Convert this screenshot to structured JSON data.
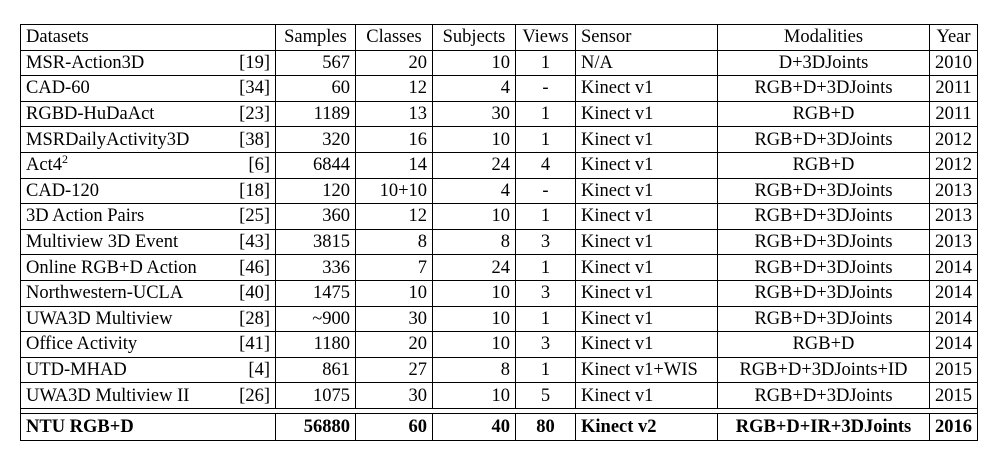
{
  "table": {
    "headers": [
      "Datasets",
      "Samples",
      "Classes",
      "Subjects",
      "Views",
      "Sensor",
      "Modalities",
      "Year"
    ],
    "rows": [
      {
        "name": "MSR-Action3D",
        "sup": "",
        "ref": "[19]",
        "samples": "567",
        "classes": "20",
        "subjects": "10",
        "views": "1",
        "sensor": "N/A",
        "modalities": "D+3DJoints",
        "year": "2010"
      },
      {
        "name": "CAD-60",
        "sup": "",
        "ref": "[34]",
        "samples": "60",
        "classes": "12",
        "subjects": "4",
        "views": "-",
        "sensor": "Kinect v1",
        "modalities": "RGB+D+3DJoints",
        "year": "2011"
      },
      {
        "name": "RGBD-HuDaAct",
        "sup": "",
        "ref": "[23]",
        "samples": "1189",
        "classes": "13",
        "subjects": "30",
        "views": "1",
        "sensor": "Kinect v1",
        "modalities": "RGB+D",
        "year": "2011"
      },
      {
        "name": "MSRDailyActivity3D",
        "sup": "",
        "ref": "[38]",
        "samples": "320",
        "classes": "16",
        "subjects": "10",
        "views": "1",
        "sensor": "Kinect v1",
        "modalities": "RGB+D+3DJoints",
        "year": "2012"
      },
      {
        "name": "Act4",
        "sup": "2",
        "ref": "[6]",
        "samples": "6844",
        "classes": "14",
        "subjects": "24",
        "views": "4",
        "sensor": "Kinect v1",
        "modalities": "RGB+D",
        "year": "2012"
      },
      {
        "name": "CAD-120",
        "sup": "",
        "ref": "[18]",
        "samples": "120",
        "classes": "10+10",
        "subjects": "4",
        "views": "-",
        "sensor": "Kinect v1",
        "modalities": "RGB+D+3DJoints",
        "year": "2013"
      },
      {
        "name": "3D Action Pairs",
        "sup": "",
        "ref": "[25]",
        "samples": "360",
        "classes": "12",
        "subjects": "10",
        "views": "1",
        "sensor": "Kinect v1",
        "modalities": "RGB+D+3DJoints",
        "year": "2013"
      },
      {
        "name": "Multiview 3D Event",
        "sup": "",
        "ref": "[43]",
        "samples": "3815",
        "classes": "8",
        "subjects": "8",
        "views": "3",
        "sensor": "Kinect v1",
        "modalities": "RGB+D+3DJoints",
        "year": "2013"
      },
      {
        "name": "Online RGB+D Action",
        "sup": "",
        "ref": "[46]",
        "samples": "336",
        "classes": "7",
        "subjects": "24",
        "views": "1",
        "sensor": "Kinect v1",
        "modalities": "RGB+D+3DJoints",
        "year": "2014"
      },
      {
        "name": "Northwestern-UCLA",
        "sup": "",
        "ref": "[40]",
        "samples": "1475",
        "classes": "10",
        "subjects": "10",
        "views": "3",
        "sensor": "Kinect v1",
        "modalities": "RGB+D+3DJoints",
        "year": "2014"
      },
      {
        "name": "UWA3D Multiview",
        "sup": "",
        "ref": "[28]",
        "samples": "~900",
        "classes": "30",
        "subjects": "10",
        "views": "1",
        "sensor": "Kinect v1",
        "modalities": "RGB+D+3DJoints",
        "year": "2014"
      },
      {
        "name": "Office Activity",
        "sup": "",
        "ref": "[41]",
        "samples": "1180",
        "classes": "20",
        "subjects": "10",
        "views": "3",
        "sensor": "Kinect v1",
        "modalities": "RGB+D",
        "year": "2014"
      },
      {
        "name": "UTD-MHAD",
        "sup": "",
        "ref": "[4]",
        "samples": "861",
        "classes": "27",
        "subjects": "8",
        "views": "1",
        "sensor": "Kinect v1+WIS",
        "modalities": "RGB+D+3DJoints+ID",
        "year": "2015"
      },
      {
        "name": "UWA3D Multiview II",
        "sup": "",
        "ref": "[26]",
        "samples": "1075",
        "classes": "30",
        "subjects": "10",
        "views": "5",
        "sensor": "Kinect v1",
        "modalities": "RGB+D+3DJoints",
        "year": "2015"
      }
    ],
    "highlight": {
      "name": "NTU RGB+D",
      "samples": "56880",
      "classes": "60",
      "subjects": "40",
      "views": "80",
      "sensor": "Kinect v2",
      "modalities": "RGB+D+IR+3DJoints",
      "year": "2016"
    }
  }
}
